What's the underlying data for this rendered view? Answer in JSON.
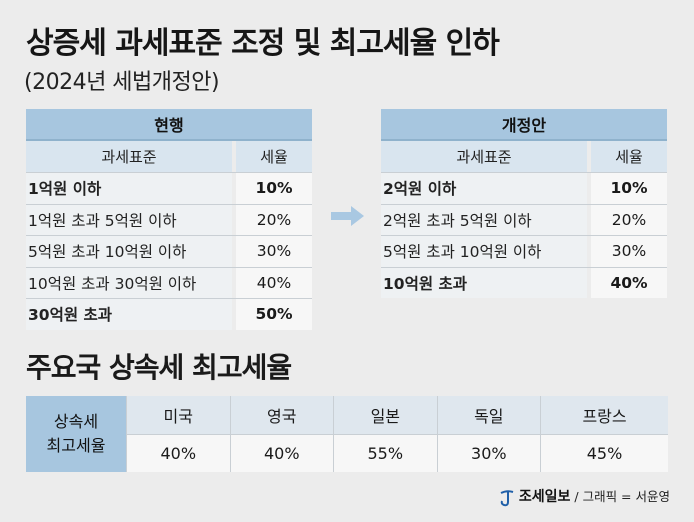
{
  "header": {
    "title": "상증세 과세표준 조정 및 최고세율 인하",
    "subtitle": "(2024년 세법개정안)"
  },
  "current": {
    "title": "현행",
    "col_base": "과세표준",
    "col_rate": "세율",
    "rows": [
      {
        "base": "1억원 이하",
        "rate": "10%",
        "bold": true
      },
      {
        "base": "1억원 초과 5억원 이하",
        "rate": "20%",
        "bold": false
      },
      {
        "base": "5억원 초과 10억원 이하",
        "rate": "30%",
        "bold": false
      },
      {
        "base": "10억원 초과 30억원 이하",
        "rate": "40%",
        "bold": false
      },
      {
        "base": "30억원 초과",
        "rate": "50%",
        "bold": true
      }
    ]
  },
  "revised": {
    "title": "개정안",
    "col_base": "과세표준",
    "col_rate": "세율",
    "rows": [
      {
        "base": "2억원 이하",
        "rate": "10%",
        "bold": true
      },
      {
        "base": "2억원 초과 5억원 이하",
        "rate": "20%",
        "bold": false
      },
      {
        "base": "5억원 초과 10억원 이하",
        "rate": "30%",
        "bold": false
      },
      {
        "base": "10억원 초과",
        "rate": "40%",
        "bold": true
      }
    ]
  },
  "arrow_icon": "right-arrow-icon",
  "international": {
    "title": "주요국 상속세 최고세율",
    "row_head_line1": "상속세",
    "row_head_line2": "최고세율",
    "countries": [
      "미국",
      "영국",
      "일본",
      "독일",
      "프랑스"
    ],
    "rates": [
      "40%",
      "40%",
      "55%",
      "30%",
      "45%"
    ]
  },
  "credit": {
    "brand": "조세일보",
    "separator": "/",
    "graphic": "그래픽 = 서윤영"
  },
  "colors": {
    "header_blue": "#a7c6df",
    "subheader_blue": "#d9e5ef",
    "arrow": "#a9c8e2",
    "background": "#ececec"
  }
}
